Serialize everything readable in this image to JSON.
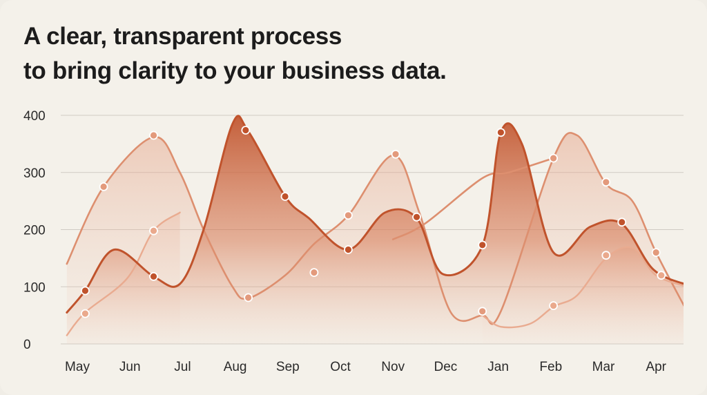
{
  "headline": {
    "line1": "A clear, transparent process",
    "line2": "to bring clarity to your business data."
  },
  "colors": {
    "background": "#f4f1ea",
    "grid": "#cfcac3",
    "series_dark": "#c0532c",
    "series_mid": "#dd8f6f",
    "series_light": "#e9ab90"
  },
  "chart_data": {
    "type": "area",
    "title": "",
    "xlabel": "",
    "ylabel": "",
    "categories": [
      "May",
      "Jun",
      "Jul",
      "Aug",
      "Sep",
      "Oct",
      "Nov",
      "Dec",
      "Jan",
      "Feb",
      "Mar",
      "Apr"
    ],
    "yticks": [
      0,
      100,
      200,
      300,
      400
    ],
    "ylim": [
      0,
      400
    ],
    "grid": true,
    "legend": "none",
    "series": [
      {
        "curve": [
          [
            -0.2,
            55
          ],
          [
            0.15,
            93
          ],
          [
            0.7,
            165
          ],
          [
            1.45,
            118
          ],
          [
            1.95,
            105
          ],
          [
            2.4,
            200
          ],
          [
            2.95,
            385
          ],
          [
            3.25,
            372
          ],
          [
            3.95,
            258
          ],
          [
            4.4,
            220
          ],
          [
            5.15,
            165
          ],
          [
            5.85,
            230
          ],
          [
            6.45,
            220
          ],
          [
            6.95,
            122
          ],
          [
            7.7,
            172
          ],
          [
            8.05,
            370
          ],
          [
            8.45,
            350
          ],
          [
            9.05,
            160
          ],
          [
            9.75,
            205
          ],
          [
            10.35,
            210
          ],
          [
            10.95,
            130
          ],
          [
            11.6,
            103
          ]
        ],
        "markers": [
          [
            0.15,
            93
          ],
          [
            1.45,
            118
          ],
          [
            3.2,
            374
          ],
          [
            3.95,
            258
          ],
          [
            5.15,
            165
          ],
          [
            6.45,
            222
          ],
          [
            7.7,
            173
          ],
          [
            8.05,
            370
          ],
          [
            10.35,
            213
          ]
        ]
      },
      {
        "curve": [
          [
            -0.2,
            140
          ],
          [
            0.5,
            275
          ],
          [
            1.45,
            362
          ],
          [
            1.95,
            300
          ],
          [
            2.4,
            200
          ],
          [
            2.95,
            100
          ],
          [
            3.25,
            80
          ],
          [
            3.95,
            120
          ],
          [
            4.5,
            175
          ],
          [
            5.15,
            225
          ],
          [
            6.0,
            330
          ],
          [
            6.5,
            230
          ],
          [
            7.1,
            55
          ],
          [
            7.7,
            50
          ],
          [
            8.05,
            57
          ],
          [
            9.05,
            325
          ],
          [
            9.5,
            365
          ],
          [
            10.05,
            280
          ],
          [
            10.55,
            250
          ],
          [
            11.0,
            160
          ],
          [
            11.6,
            55
          ]
        ],
        "markers": [
          [
            0.5,
            275
          ],
          [
            1.45,
            365
          ],
          [
            3.25,
            81
          ],
          [
            4.5,
            125
          ],
          [
            5.15,
            225
          ],
          [
            6.05,
            332
          ],
          [
            7.7,
            57
          ],
          [
            9.05,
            325
          ],
          [
            10.05,
            283
          ],
          [
            11.0,
            160
          ]
        ]
      },
      {
        "curve": [
          [
            -0.2,
            15
          ],
          [
            0.15,
            55
          ],
          [
            0.95,
            115
          ],
          [
            1.45,
            198
          ],
          [
            1.95,
            230
          ]
        ],
        "markers": [
          [
            0.15,
            53
          ],
          [
            1.45,
            198
          ]
        ]
      },
      {
        "curve": [
          [
            6.0,
            183
          ],
          [
            6.6,
            210
          ],
          [
            7.7,
            290
          ],
          [
            8.2,
            300
          ],
          [
            9.05,
            325
          ]
        ],
        "markers": []
      },
      {
        "curve": [
          [
            7.7,
            50
          ],
          [
            8.05,
            30
          ],
          [
            8.6,
            35
          ],
          [
            9.05,
            65
          ],
          [
            9.5,
            85
          ],
          [
            10.05,
            150
          ],
          [
            10.55,
            168
          ],
          [
            11.0,
            120
          ],
          [
            11.6,
            100
          ]
        ],
        "markers": [
          [
            9.05,
            67
          ],
          [
            10.05,
            155
          ],
          [
            11.1,
            120
          ]
        ]
      }
    ]
  }
}
